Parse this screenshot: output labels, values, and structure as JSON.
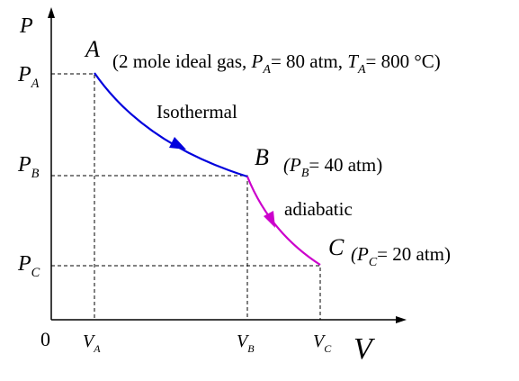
{
  "axes": {
    "y_label": "P",
    "x_label": "V",
    "origin": "0"
  },
  "y_marks": [
    {
      "main": "P",
      "sub": "A"
    },
    {
      "main": "P",
      "sub": "B"
    },
    {
      "main": "P",
      "sub": "C"
    }
  ],
  "x_marks": [
    {
      "main": "V",
      "sub": "A"
    },
    {
      "main": "V",
      "sub": "B"
    },
    {
      "main": "V",
      "sub": "C"
    }
  ],
  "points": [
    {
      "label": "A",
      "note": [
        {
          "text": "(2 mole ideal gas, ",
          "sub": false
        },
        {
          "text": "P",
          "sub": false
        },
        {
          "text": "A",
          "sub": true
        },
        {
          "text": "= 80 atm, ",
          "sub": false
        },
        {
          "text": "T",
          "sub": false
        },
        {
          "text": "A",
          "sub": true
        },
        {
          "text": "= 800 °C)",
          "sub": false
        }
      ]
    },
    {
      "label": "B",
      "note": [
        {
          "text": "(",
          "sub": false
        },
        {
          "text": "P",
          "sub": false
        },
        {
          "text": "B",
          "sub": true
        },
        {
          "text": "= 40 atm)",
          "sub": false
        }
      ]
    },
    {
      "label": "C",
      "note": [
        {
          "text": "(",
          "sub": false
        },
        {
          "text": "P",
          "sub": false
        },
        {
          "text": "C",
          "sub": true
        },
        {
          "text": "= 20 atm)",
          "sub": false
        }
      ]
    }
  ],
  "processes": [
    "Isothermal",
    "adiabatic"
  ]
}
